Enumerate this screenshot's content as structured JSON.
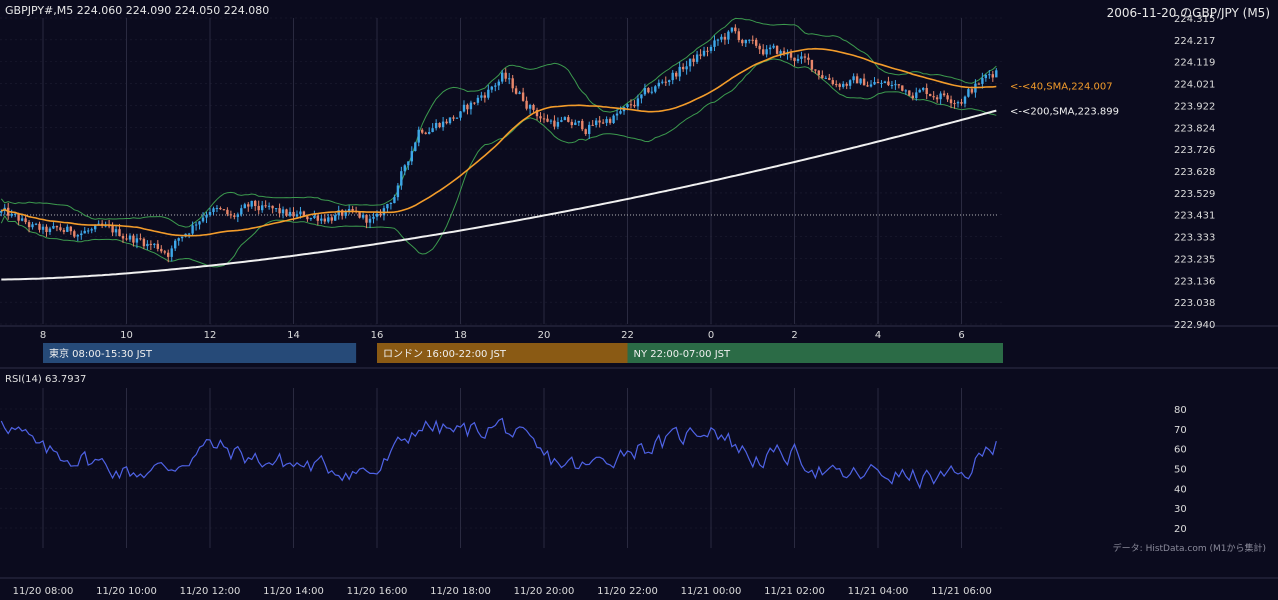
{
  "header": {
    "symbol_line": "GBPJPY#,M5 224.060 224.090 224.050 224.080",
    "right_title": "2006-11-20 のGBP/JPY (M5)"
  },
  "colors": {
    "background": "#0b0b1e",
    "bull": "#3ea7e8",
    "bear": "#e8866a",
    "sma40": "#f39c2b",
    "sma200": "#f0f0f0",
    "bollinger": "#3c9a4e",
    "rsi": "#4f63e6",
    "grid": "#2a2a40",
    "tokyo": "#264a78",
    "london": "#8a5a14",
    "ny": "#2b6b46"
  },
  "sessions": [
    {
      "label": "東京 08:00-15:30 JST",
      "color": "#264a78"
    },
    {
      "label": "ロンドン 16:00-22:00 JST",
      "color": "#8a5a14"
    },
    {
      "label": "NY 22:00-07:00 JST",
      "color": "#2b6b46"
    }
  ],
  "annotations": {
    "sma40_label": "<-<40,SMA,224.007",
    "sma200_label": "<-<200,SMA,223.899"
  },
  "rsi": {
    "label": "RSI(14) 63.7937",
    "y_ticks": [
      "80",
      "70",
      "60",
      "50",
      "40",
      "30",
      "20"
    ]
  },
  "footer": {
    "source": "データ: HistData.com (M1から集計)"
  },
  "chart_data": {
    "type": "candlestick",
    "timeframe": "M5",
    "ylim": [
      222.94,
      224.315
    ],
    "y_ticks": [
      "224.315",
      "224.217",
      "224.119",
      "224.021",
      "223.922",
      "223.824",
      "223.726",
      "223.628",
      "223.529",
      "223.431",
      "223.333",
      "223.235",
      "223.136",
      "223.038",
      "222.940"
    ],
    "x_ticks_hour": [
      "8",
      "10",
      "12",
      "14",
      "16",
      "18",
      "20",
      "22",
      "0",
      "2",
      "4",
      "6"
    ],
    "x_ticks_time": [
      "11/20 08:00",
      "11/20 10:00",
      "11/20 12:00",
      "11/20 14:00",
      "11/20 16:00",
      "11/20 18:00",
      "11/20 20:00",
      "11/20 22:00",
      "11/21 00:00",
      "11/21 02:00",
      "11/21 04:00",
      "11/21 06:00"
    ],
    "reference_level": 223.43,
    "last": {
      "open": 224.06,
      "high": 224.09,
      "low": 224.05,
      "close": 224.08
    },
    "sma40_last": 224.007,
    "sma200_last": 223.899,
    "rsi_last": 63.7937,
    "rsi_ylim": [
      20,
      80
    ],
    "close_anchors": [
      {
        "t": "11/20 07:00",
        "close": 223.44
      },
      {
        "t": "11/20 08:00",
        "close": 223.35
      },
      {
        "t": "11/20 09:00",
        "close": 223.36
      },
      {
        "t": "11/20 10:00",
        "close": 223.34
      },
      {
        "t": "11/20 11:00",
        "close": 223.27
      },
      {
        "t": "11/20 12:00",
        "close": 223.47
      },
      {
        "t": "11/20 12:30",
        "close": 223.41
      },
      {
        "t": "11/20 13:00",
        "close": 223.46
      },
      {
        "t": "11/20 14:00",
        "close": 223.42
      },
      {
        "t": "11/20 15:00",
        "close": 223.43
      },
      {
        "t": "11/20 16:00",
        "close": 223.4
      },
      {
        "t": "11/20 16:30",
        "close": 223.55
      },
      {
        "t": "11/20 17:00",
        "close": 223.82
      },
      {
        "t": "11/20 18:00",
        "close": 223.88
      },
      {
        "t": "11/20 19:00",
        "close": 224.05
      },
      {
        "t": "11/20 20:00",
        "close": 223.86
      },
      {
        "t": "11/20 21:00",
        "close": 223.82
      },
      {
        "t": "11/20 22:00",
        "close": 223.9
      },
      {
        "t": "11/20 23:00",
        "close": 224.05
      },
      {
        "t": "11/21 00:00",
        "close": 224.18
      },
      {
        "t": "11/21 00:30",
        "close": 224.25
      },
      {
        "t": "11/21 01:00",
        "close": 224.18
      },
      {
        "t": "11/21 02:00",
        "close": 224.14
      },
      {
        "t": "11/21 03:00",
        "close": 224.03
      },
      {
        "t": "11/21 04:00",
        "close": 224.02
      },
      {
        "t": "11/21 05:00",
        "close": 223.99
      },
      {
        "t": "11/21 06:00",
        "close": 223.96
      },
      {
        "t": "11/21 06:50",
        "close": 224.08
      }
    ],
    "rsi_anchors": [
      {
        "t": "11/20 07:00",
        "value": 76
      },
      {
        "t": "11/20 08:00",
        "value": 58
      },
      {
        "t": "11/20 09:00",
        "value": 55
      },
      {
        "t": "11/20 10:00",
        "value": 48
      },
      {
        "t": "11/20 11:00",
        "value": 50
      },
      {
        "t": "11/20 12:00",
        "value": 62
      },
      {
        "t": "11/20 13:00",
        "value": 55
      },
      {
        "t": "11/20 14:00",
        "value": 52
      },
      {
        "t": "11/20 15:00",
        "value": 50
      },
      {
        "t": "11/20 16:00",
        "value": 48
      },
      {
        "t": "11/20 17:00",
        "value": 72
      },
      {
        "t": "11/20 18:00",
        "value": 68
      },
      {
        "t": "11/20 19:00",
        "value": 72
      },
      {
        "t": "11/20 20:00",
        "value": 55
      },
      {
        "t": "11/20 21:00",
        "value": 50
      },
      {
        "t": "11/20 22:00",
        "value": 60
      },
      {
        "t": "11/20 23:00",
        "value": 63
      },
      {
        "t": "11/21 00:00",
        "value": 72
      },
      {
        "t": "11/21 01:00",
        "value": 55
      },
      {
        "t": "11/21 02:00",
        "value": 57
      },
      {
        "t": "11/21 03:00",
        "value": 45
      },
      {
        "t": "11/21 04:00",
        "value": 48
      },
      {
        "t": "11/21 05:00",
        "value": 45
      },
      {
        "t": "11/21 06:00",
        "value": 45
      },
      {
        "t": "11/21 06:50",
        "value": 63.79
      }
    ]
  }
}
